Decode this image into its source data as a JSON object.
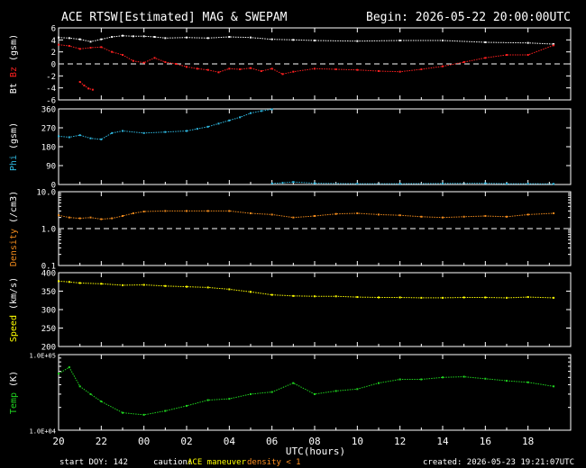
{
  "header": {
    "title": "ACE RTSW[Estimated] MAG & SWEPAM",
    "begin": "Begin: 2026-05-22 20:00:00UTC"
  },
  "footer": {
    "start_doy": "start DOY: 142",
    "caution_label": "caution:",
    "caution_maneuver": "ACE maneuver",
    "caution_density": "density < 1",
    "created": "created: 2026-05-23 19:21:07UTC"
  },
  "colors": {
    "bt": "#ffffff",
    "bz": "#ff2020",
    "phi": "#2fb8e0",
    "density": "#f08a1c",
    "speed": "#ffff00",
    "temp": "#1fd41f",
    "caution_maneuver": "#ffff00",
    "caution_density": "#ff9020",
    "axes": "#ffffff"
  },
  "chart_data": {
    "type": "scatter",
    "title": "ACE RTSW[Estimated] MAG & SWEPAM",
    "xlabel": "UTC(hours)",
    "x_range_hours": [
      20,
      44
    ],
    "x_ticks": [
      "20",
      "22",
      "00",
      "02",
      "04",
      "06",
      "08",
      "10",
      "12",
      "14",
      "16",
      "18"
    ],
    "x_tick_hours": [
      20,
      22,
      24,
      26,
      28,
      30,
      32,
      34,
      36,
      38,
      40,
      42
    ],
    "panels": [
      {
        "id": "mag",
        "ylabel_parts": [
          {
            "text": "Bt",
            "color": "#ffffff"
          },
          {
            "text": " Bz",
            "color": "#ff2020"
          },
          {
            "text": " (gsm)",
            "color": "#ffffff"
          }
        ],
        "scale": "linear",
        "ylim": [
          -6,
          6
        ],
        "yticks": [
          -6,
          -4,
          -2,
          0,
          2,
          4,
          6
        ],
        "ytick_labels": [
          "-6",
          "-4",
          "-2",
          "0",
          "2",
          "4",
          "6"
        ],
        "dashed_reference": 0,
        "series": [
          {
            "name": "Bt",
            "color": "#ffffff",
            "x": [
              20.0,
              20.5,
              21.0,
              21.5,
              22.0,
              22.5,
              23.0,
              23.5,
              24.0,
              24.5,
              25.0,
              26.0,
              27.0,
              28.0,
              29.0,
              30.0,
              31.0,
              32.0,
              34.0,
              36.0,
              38.0,
              40.0,
              42.0,
              43.2
            ],
            "y": [
              4.4,
              4.3,
              4.1,
              3.7,
              4.1,
              4.5,
              4.7,
              4.6,
              4.6,
              4.5,
              4.3,
              4.4,
              4.3,
              4.5,
              4.4,
              4.1,
              4.0,
              3.9,
              3.8,
              3.9,
              3.9,
              3.6,
              3.5,
              3.3
            ]
          },
          {
            "name": "Bz",
            "color": "#ff2020",
            "x": [
              20.0,
              20.5,
              21.0,
              21.5,
              22.0,
              22.5,
              23.0,
              23.5,
              24.0,
              24.5,
              25.0,
              25.5,
              26.0,
              26.5,
              27.0,
              27.5,
              28.0,
              28.5,
              29.0,
              29.5,
              30.0,
              30.5,
              31.0,
              32.0,
              33.0,
              34.0,
              35.0,
              36.0,
              37.0,
              38.0,
              39.0,
              40.0,
              41.0,
              42.0,
              43.2
            ],
            "y": [
              3.2,
              3.0,
              2.5,
              2.7,
              2.8,
              2.0,
              1.5,
              0.5,
              0.2,
              1.0,
              0.3,
              0.0,
              -0.5,
              -0.8,
              -1.0,
              -1.4,
              -0.8,
              -0.9,
              -0.7,
              -1.2,
              -0.8,
              -1.7,
              -1.3,
              -0.8,
              -0.9,
              -1.0,
              -1.2,
              -1.3,
              -0.9,
              -0.4,
              0.3,
              1.0,
              1.5,
              1.5,
              3.1
            ]
          },
          {
            "name": "Bz",
            "color": "#ff2020",
            "x": [
              21.0,
              21.2,
              21.4,
              21.6
            ],
            "y": [
              -3.0,
              -3.6,
              -4.1,
              -4.3
            ]
          }
        ]
      },
      {
        "id": "phi",
        "ylabel_parts": [
          {
            "text": "Phi",
            "color": "#2fb8e0"
          },
          {
            "text": " (gsm)",
            "color": "#ffffff"
          }
        ],
        "scale": "linear",
        "ylim": [
          0,
          360
        ],
        "yticks": [
          0,
          90,
          180,
          270,
          360
        ],
        "ytick_labels": [
          "0",
          "90",
          "180",
          "270",
          "360"
        ],
        "series": [
          {
            "name": "Phi",
            "color": "#2fb8e0",
            "x": [
              20.0,
              20.5,
              21.0,
              21.5,
              22.0,
              22.5,
              23.0,
              24.0,
              25.0,
              26.0,
              26.5,
              27.0,
              27.5,
              28.0,
              28.5,
              29.0,
              29.5,
              30.0
            ],
            "y": [
              230,
              225,
              235,
              220,
              215,
              245,
              255,
              245,
              250,
              255,
              265,
              275,
              290,
              305,
              320,
              340,
              350,
              358
            ]
          },
          {
            "name": "Phi",
            "color": "#2fb8e0",
            "x": [
              30.0,
              30.5,
              31.0,
              32.0,
              34.0,
              36.0,
              38.0,
              40.0,
              41.0,
              42.0,
              43.2
            ],
            "y": [
              5,
              8,
              12,
              6,
              4,
              4,
              5,
              6,
              4,
              4,
              3
            ]
          }
        ]
      },
      {
        "id": "density",
        "ylabel_parts": [
          {
            "text": "Density",
            "color": "#f08a1c"
          },
          {
            "text": " (/cm3)",
            "color": "#ffffff"
          }
        ],
        "scale": "log",
        "ylim": [
          0.1,
          10.0
        ],
        "yticks": [
          0.1,
          1.0,
          10.0
        ],
        "ytick_labels": [
          "0.1",
          "1.0",
          "10.0"
        ],
        "dashed_reference": 1.0,
        "series": [
          {
            "name": "Density",
            "color": "#f08a1c",
            "x": [
              20.0,
              20.5,
              21.0,
              21.5,
              22.0,
              22.5,
              23.0,
              23.5,
              24.0,
              25.0,
              26.0,
              27.0,
              28.0,
              29.0,
              30.0,
              31.0,
              32.0,
              33.0,
              34.0,
              35.0,
              36.0,
              37.0,
              38.0,
              39.0,
              40.0,
              41.0,
              42.0,
              43.2
            ],
            "y": [
              2.3,
              2.0,
              1.9,
              2.0,
              1.8,
              1.9,
              2.2,
              2.6,
              2.9,
              3.0,
              3.0,
              3.0,
              3.0,
              2.6,
              2.4,
              2.0,
              2.2,
              2.5,
              2.6,
              2.4,
              2.3,
              2.1,
              2.0,
              2.1,
              2.2,
              2.1,
              2.4,
              2.6
            ]
          }
        ]
      },
      {
        "id": "speed",
        "ylabel_parts": [
          {
            "text": "Speed",
            "color": "#ffff00"
          },
          {
            "text": " (km/s)",
            "color": "#ffffff"
          }
        ],
        "scale": "linear",
        "ylim": [
          200,
          400
        ],
        "yticks": [
          200,
          250,
          300,
          350,
          400
        ],
        "ytick_labels": [
          "200",
          "250",
          "300",
          "350",
          "400"
        ],
        "series": [
          {
            "name": "Speed",
            "color": "#ffff00",
            "x": [
              20.0,
              20.5,
              21.0,
              22.0,
              23.0,
              24.0,
              25.0,
              26.0,
              27.0,
              28.0,
              29.0,
              30.0,
              31.0,
              32.0,
              33.0,
              34.0,
              35.0,
              36.0,
              37.0,
              38.0,
              39.0,
              40.0,
              41.0,
              42.0,
              43.2
            ],
            "y": [
              377,
              375,
              372,
              370,
              366,
              367,
              364,
              362,
              360,
              355,
              348,
              340,
              337,
              336,
              336,
              334,
              333,
              333,
              332,
              332,
              333,
              333,
              332,
              334,
              332
            ]
          }
        ]
      },
      {
        "id": "temp",
        "ylabel_parts": [
          {
            "text": "Temp",
            "color": "#1fd41f"
          },
          {
            "text": " (K)",
            "color": "#ffffff"
          }
        ],
        "scale": "log",
        "ylim": [
          10000,
          100000
        ],
        "yticks": [
          10000,
          100000
        ],
        "ytick_labels": [
          "1.0E+04",
          "1.0E+05"
        ],
        "series": [
          {
            "name": "Temp",
            "color": "#1fd41f",
            "x": [
              20.0,
              20.5,
              21.0,
              21.5,
              22.0,
              23.0,
              24.0,
              25.0,
              26.0,
              27.0,
              28.0,
              29.0,
              30.0,
              31.0,
              32.0,
              33.0,
              34.0,
              35.0,
              36.0,
              37.0,
              38.0,
              39.0,
              40.0,
              41.0,
              42.0,
              43.2
            ],
            "y": [
              56000,
              68000,
              38000,
              30000,
              24000,
              17000,
              16000,
              18000,
              21000,
              25000,
              26000,
              30000,
              32000,
              42000,
              30000,
              33000,
              35000,
              42000,
              47000,
              47000,
              50000,
              51000,
              48000,
              45000,
              43000,
              38000
            ]
          }
        ]
      }
    ]
  }
}
